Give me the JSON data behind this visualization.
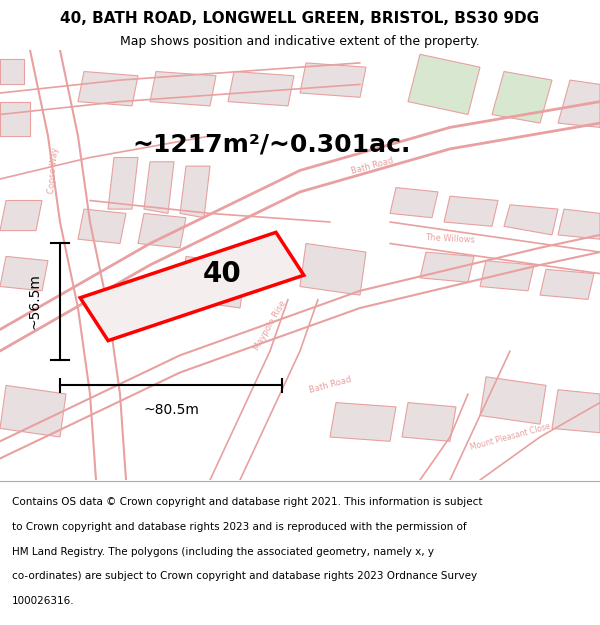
{
  "title_line1": "40, BATH ROAD, LONGWELL GREEN, BRISTOL, BS30 9DG",
  "title_line2": "Map shows position and indicative extent of the property.",
  "area_text": "~1217m²/~0.301ac.",
  "label_number": "40",
  "dim_width": "~80.5m",
  "dim_height": "~56.5m",
  "footer_lines": [
    "Contains OS data © Crown copyright and database right 2021. This information is subject",
    "to Crown copyright and database rights 2023 and is reproduced with the permission of",
    "HM Land Registry. The polygons (including the associated geometry, namely x, y",
    "co-ordinates) are subject to Crown copyright and database rights 2023 Ordnance Survey",
    "100026316."
  ],
  "bg_color": "#ffffff",
  "map_bg": "#f9f5f5",
  "road_color": "#e8a0a0",
  "building_fill": "#e8e0e0",
  "highlight_color": "#ff0000",
  "title_fontsize": 11,
  "subtitle_fontsize": 9,
  "area_fontsize": 18,
  "number_fontsize": 20,
  "dim_fontsize": 10,
  "footer_fontsize": 7.5
}
